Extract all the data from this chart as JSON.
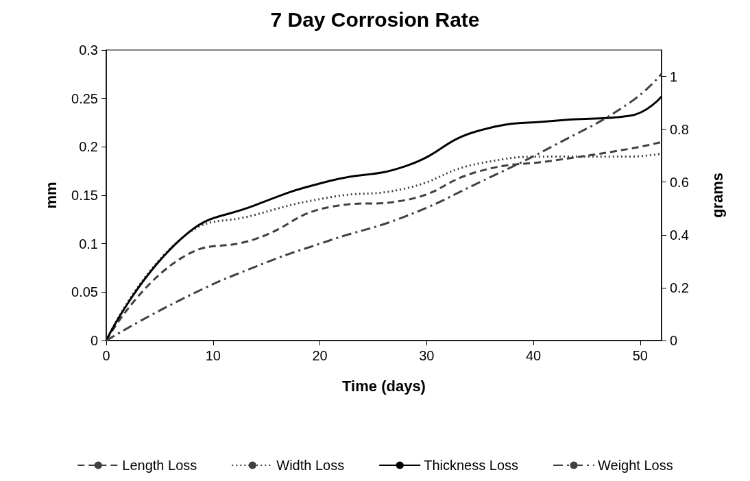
{
  "chart_data": {
    "type": "line",
    "title": "7 Day Corrosion Rate",
    "xlabel": "Time (days)",
    "ylabel": "mm",
    "y2label": "grams",
    "x": [
      0,
      7,
      14,
      21,
      28,
      35,
      42,
      49,
      52
    ],
    "series": [
      {
        "name": "Length Loss",
        "color": "#404040",
        "line_style": "dashed",
        "values": [
          0,
          0.085,
          0.105,
          0.138,
          0.145,
          0.175,
          0.186,
          0.198,
          0.205
        ]
      },
      {
        "name": "Width Loss",
        "color": "#404040",
        "line_style": "dotted",
        "values": [
          0,
          0.105,
          0.13,
          0.148,
          0.157,
          0.183,
          0.19,
          0.19,
          0.193
        ]
      },
      {
        "name": "Thickness Loss",
        "color": "#000000",
        "line_style": "solid",
        "values": [
          0,
          0.105,
          0.14,
          0.165,
          0.18,
          0.217,
          0.227,
          0.232,
          0.252
        ]
      },
      {
        "name": "Weight Loss",
        "color": "#404040",
        "line_style": "dashdot",
        "axis": "y2",
        "values": [
          0,
          0.155,
          0.28,
          0.38,
          0.47,
          0.6,
          0.74,
          0.9,
          1.01
        ]
      }
    ],
    "xlim": [
      0,
      52
    ],
    "xticks": [
      0,
      10,
      20,
      30,
      40,
      50
    ],
    "ylim": [
      0,
      0.3
    ],
    "yticks": [
      0,
      0.05,
      0.1,
      0.15,
      0.2,
      0.25,
      0.3
    ],
    "y2lim": [
      0,
      1.1
    ],
    "y2ticks": [
      0,
      0.2,
      0.4,
      0.6,
      0.8,
      1
    ],
    "grid": false,
    "legend": "bottom",
    "marker": "none"
  }
}
